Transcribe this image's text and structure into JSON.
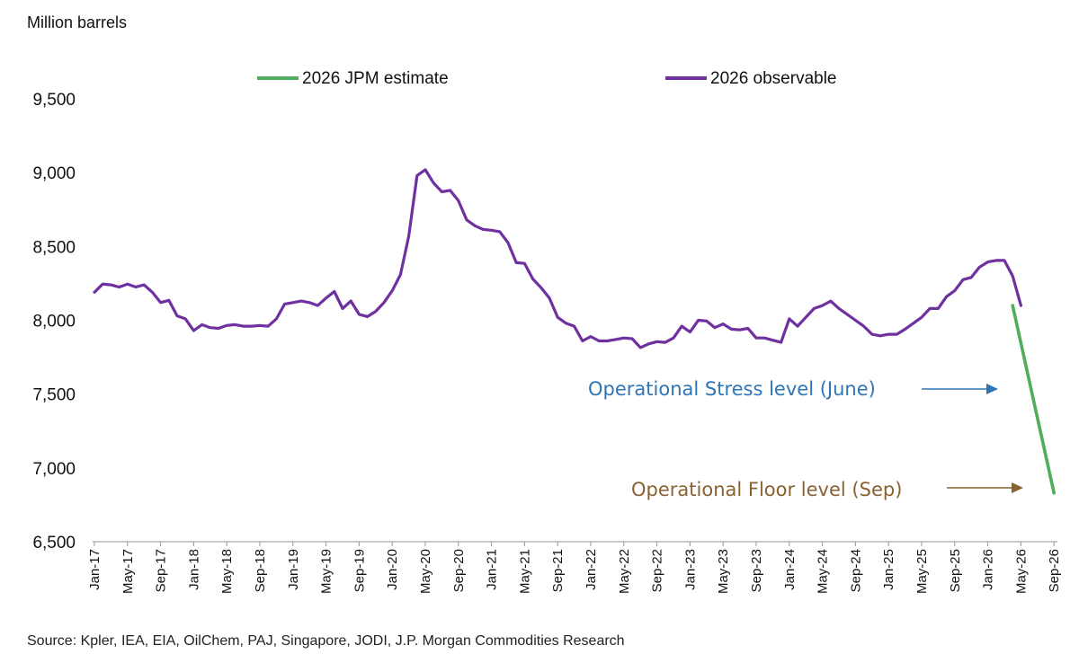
{
  "chart_data": {
    "type": "line",
    "ylabel": "Million barrels",
    "ylim": [
      6500,
      9500
    ],
    "yticks": [
      6500,
      7000,
      7500,
      8000,
      8500,
      9000,
      9500
    ],
    "ytick_labels": [
      "6,500",
      "7,000",
      "7,500",
      "8,000",
      "8,500",
      "9,000",
      "9,500"
    ],
    "xticks": [
      "Jan-17",
      "May-17",
      "Sep-17",
      "Jan-18",
      "May-18",
      "Sep-18",
      "Jan-19",
      "May-19",
      "Sep-19",
      "Jan-20",
      "May-20",
      "Sep-20",
      "Jan-21",
      "May-21",
      "Sep-21",
      "Jan-22",
      "May-22",
      "Sep-22",
      "Jan-23",
      "May-23",
      "Sep-23",
      "Jan-24",
      "May-24",
      "Sep-24",
      "Jan-25",
      "May-25",
      "Sep-25",
      "Jan-26",
      "May-26",
      "Sep-26"
    ],
    "legend_position": "top",
    "series": [
      {
        "name": "2026 observable",
        "color": "#6f30a0",
        "x_start": "Jan-17",
        "x_step": "month",
        "values": [
          8190,
          8245,
          8240,
          8225,
          8245,
          8225,
          8240,
          8190,
          8120,
          8135,
          8030,
          8010,
          7930,
          7970,
          7950,
          7945,
          7965,
          7970,
          7960,
          7960,
          7965,
          7960,
          8010,
          8110,
          8120,
          8130,
          8120,
          8100,
          8150,
          8195,
          8080,
          8130,
          8040,
          8025,
          8060,
          8120,
          8200,
          8310,
          8570,
          8980,
          9020,
          8930,
          8870,
          8880,
          8810,
          8680,
          8640,
          8615,
          8610,
          8600,
          8525,
          8390,
          8385,
          8280,
          8220,
          8150,
          8020,
          7980,
          7960,
          7860,
          7890,
          7860,
          7860,
          7870,
          7880,
          7875,
          7815,
          7840,
          7855,
          7850,
          7880,
          7960,
          7920,
          8000,
          7995,
          7950,
          7975,
          7940,
          7935,
          7945,
          7880,
          7880,
          7865,
          7850,
          8010,
          7960,
          8020,
          8080,
          8100,
          8130,
          8080,
          8040,
          8000,
          7960,
          7905,
          7895,
          7905,
          7905,
          7940,
          7980,
          8020,
          8080,
          8080,
          8160,
          8200,
          8275,
          8290,
          8360,
          8395,
          8405,
          8405,
          8300,
          8100
        ]
      },
      {
        "name": "2026 JPM estimate",
        "color": "#4fad5b",
        "points": [
          [
            "Apr-26",
            8100
          ],
          [
            "Sep-26",
            6830
          ]
        ]
      }
    ]
  },
  "annotations": [
    {
      "text": "Operational Stress level (June)",
      "color": "#2e75b6",
      "arrow_color": "#2e75b6"
    },
    {
      "text": "Operational Floor level (Sep)",
      "color": "#8a6132",
      "arrow_color": "#8a6132"
    }
  ],
  "source": "Source: Kpler, IEA, EIA, OilChem, PAJ, Singapore, JODI, J.P. Morgan Commodities Research"
}
